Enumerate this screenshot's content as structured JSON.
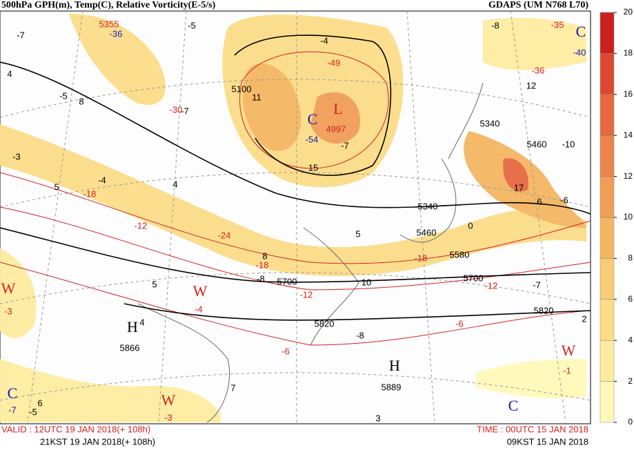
{
  "header": {
    "title": "500hPa GPH(m), Temp(C), Relative Vorticity(E-5/s)",
    "model": "GDAPS (UM N768 L70)"
  },
  "footer": {
    "valid_utc": "VALID : 12UTC 19 JAN 2018(+ 108h)",
    "valid_kst": "21KST 19 JAN 2018(+ 108h)",
    "time_utc": "TIME : 00UTC 15 JAN 2018",
    "time_kst": "09KST 15 JAN 2018"
  },
  "colorbar": {
    "ticks": [
      0,
      2,
      4,
      6,
      8,
      10,
      12,
      14,
      16,
      18,
      20
    ],
    "colors": [
      "#fff9b8",
      "#fdeca0",
      "#fbdd88",
      "#f8cc74",
      "#f4b662",
      "#f09e56",
      "#ec844c",
      "#e66840",
      "#de4832",
      "#cc2020"
    ]
  },
  "labels": [
    {
      "text": "-7",
      "color": "black"
    },
    {
      "text": "5355",
      "color": "red"
    },
    {
      "text": "-36",
      "color": "blue"
    },
    {
      "text": "-5",
      "color": "black"
    },
    {
      "text": "-8",
      "color": "black"
    },
    {
      "text": "-35",
      "color": "red"
    },
    {
      "text": "C",
      "color": "blue"
    },
    {
      "text": "-40",
      "color": "blue"
    },
    {
      "text": "4",
      "color": "black"
    },
    {
      "text": "-4",
      "color": "black"
    },
    {
      "text": "-49",
      "color": "red"
    },
    {
      "text": "5100",
      "color": "black"
    },
    {
      "text": "11",
      "color": "black"
    },
    {
      "text": "-5",
      "color": "black"
    },
    {
      "text": "8",
      "color": "black"
    },
    {
      "text": "-7",
      "color": "black"
    },
    {
      "text": "-30",
      "color": "red"
    },
    {
      "text": "L",
      "color": "red"
    },
    {
      "text": "C",
      "color": "blue"
    },
    {
      "text": "4997",
      "color": "red"
    },
    {
      "text": "-54",
      "color": "blue"
    },
    {
      "text": "-7",
      "color": "black"
    },
    {
      "text": "12",
      "color": "black"
    },
    {
      "text": "-36",
      "color": "red"
    },
    {
      "text": "5340",
      "color": "black"
    },
    {
      "text": "-10",
      "color": "black"
    },
    {
      "text": "5460",
      "color": "black"
    },
    {
      "text": "-3",
      "color": "black"
    },
    {
      "text": "15",
      "color": "black"
    },
    {
      "text": "-4",
      "color": "black"
    },
    {
      "text": "4",
      "color": "black"
    },
    {
      "text": "5",
      "color": "black"
    },
    {
      "text": "-18",
      "color": "red"
    },
    {
      "text": "17",
      "color": "black"
    },
    {
      "text": "6",
      "color": "black"
    },
    {
      "text": "-6",
      "color": "black"
    },
    {
      "text": "5340",
      "color": "black"
    },
    {
      "text": "-12",
      "color": "red"
    },
    {
      "text": "-24",
      "color": "red"
    },
    {
      "text": "0",
      "color": "black"
    },
    {
      "text": "5460",
      "color": "black"
    },
    {
      "text": "5",
      "color": "black"
    },
    {
      "text": "8",
      "color": "black"
    },
    {
      "text": "-18",
      "color": "red"
    },
    {
      "text": "5580",
      "color": "black"
    },
    {
      "text": "-18",
      "color": "red"
    },
    {
      "text": "-8",
      "color": "black"
    },
    {
      "text": "5700",
      "color": "black"
    },
    {
      "text": "10",
      "color": "black"
    },
    {
      "text": "5700",
      "color": "black"
    },
    {
      "text": "-12",
      "color": "red"
    },
    {
      "text": "-7",
      "color": "black"
    },
    {
      "text": "W",
      "color": "red"
    },
    {
      "text": "-3",
      "color": "red"
    },
    {
      "text": "W",
      "color": "red"
    },
    {
      "text": "-4",
      "color": "red"
    },
    {
      "text": "5",
      "color": "black"
    },
    {
      "text": "-12",
      "color": "red"
    },
    {
      "text": "H",
      "color": "black"
    },
    {
      "text": "4",
      "color": "black"
    },
    {
      "text": "5866",
      "color": "black"
    },
    {
      "text": "5820",
      "color": "black"
    },
    {
      "text": "-8",
      "color": "black"
    },
    {
      "text": "5820",
      "color": "black"
    },
    {
      "text": "2",
      "color": "black"
    },
    {
      "text": "-6",
      "color": "red"
    },
    {
      "text": "-6",
      "color": "red"
    },
    {
      "text": "W",
      "color": "red"
    },
    {
      "text": "-1",
      "color": "red"
    },
    {
      "text": "H",
      "color": "black"
    },
    {
      "text": "5889",
      "color": "black"
    },
    {
      "text": "7",
      "color": "black"
    },
    {
      "text": "C",
      "color": "blue"
    },
    {
      "text": "-7",
      "color": "blue"
    },
    {
      "text": "6",
      "color": "black"
    },
    {
      "text": "-5",
      "color": "black"
    },
    {
      "text": "W",
      "color": "red"
    },
    {
      "text": "-3",
      "color": "red"
    },
    {
      "text": "C",
      "color": "blue"
    },
    {
      "text": "3",
      "color": "black"
    }
  ]
}
